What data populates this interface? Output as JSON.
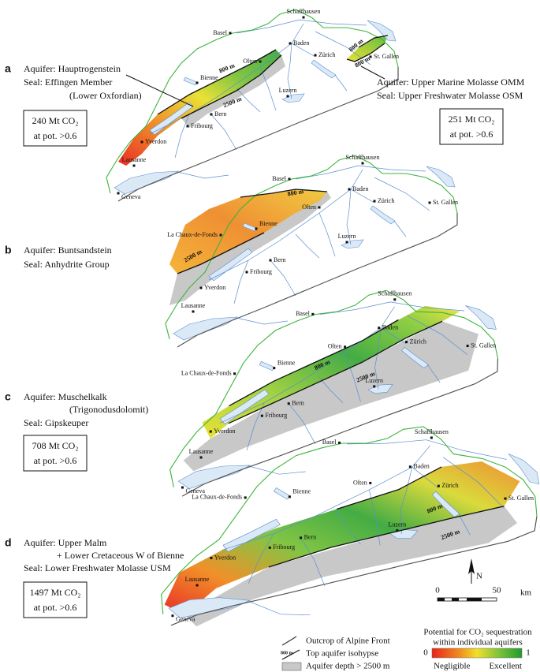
{
  "panels": [
    {
      "letter": "a",
      "aquifer": "Aquifer: Hauptrogenstein",
      "seal": "Seal: Effingen Member",
      "seal_note": "(Lower Oxfordian)",
      "capacity": "240 Mt CO₂",
      "capacity_note": "at pot. >0.6",
      "aquifer_2": "Aquifer: Upper Marine Molasse OMM",
      "seal_2": "Seal: Upper Freshwater Molasse OSM",
      "capacity_2": "251 Mt CO₂",
      "capacity_note_2": "at pot. >0.6",
      "cities": [
        "Schaffhausen",
        "Basel",
        "Baden",
        "Zürich",
        "Olten",
        "St. Gallen",
        "Bienne",
        "Luzern",
        "Bern",
        "Fribourg",
        "Yverdon",
        "Lausanne",
        "Geneva"
      ],
      "isohypses": [
        "800 m",
        "2500 m",
        "800 m",
        "800 m"
      ]
    },
    {
      "letter": "b",
      "aquifer": "Aquifer: Buntsandstein",
      "seal": "Seal: Anhydrite Group",
      "cities": [
        "Schaffhausen",
        "Basel",
        "Baden",
        "Zürich",
        "Olten",
        "St. Gallen",
        "La Chaux-de-Fonds",
        "Bienne",
        "Luzern",
        "Bern",
        "Fribourg",
        "Yverdon",
        "Lausanne"
      ],
      "isohypses": [
        "800 m",
        "2500 m"
      ]
    },
    {
      "letter": "c",
      "aquifer": "Aquifer: Muschelkalk",
      "aquifer_note": "(Trigonodusdolomit)",
      "seal": "Seal: Gipskeuper",
      "capacity": "708 Mt CO₂",
      "capacity_note": "at pot. >0.6",
      "cities": [
        "Schaffhausen",
        "Basel",
        "Baden",
        "Zürich",
        "Olten",
        "St. Gallen",
        "La Chaux-de-Fonds",
        "Bienne",
        "Luzern",
        "Bern",
        "Fribourg",
        "Yverdon",
        "Lausanne",
        "Geneva"
      ],
      "isohypses": [
        "800 m",
        "2500 m"
      ]
    },
    {
      "letter": "d",
      "aquifer": "Aquifer: Upper Malm",
      "aquifer_note": "+ Lower Cretaceous W of Bienne",
      "seal": "Seal: Lower Freshwater Molasse USM",
      "capacity": "1497 Mt CO₂",
      "capacity_note": "at pot. >0.6",
      "cities": [
        "Schaffhausen",
        "Basel",
        "Baden",
        "Zürich",
        "Olten",
        "St. Gallen",
        "La Chaux-de-Fonds",
        "Bienne",
        "Luzern",
        "Bern",
        "Fribourg",
        "Yverdon",
        "Lausanne",
        "Geneva"
      ],
      "isohypses": [
        "800 m",
        "2500 m"
      ]
    }
  ],
  "legend": {
    "outcrop": "Outcrop of Alpine Front",
    "isohypse": "Top aquifer isohypse",
    "isohypse_sample": "800 m",
    "depth": "Aquifer depth > 2500 m",
    "potential_title": "Potential for CO₂ sequestration",
    "potential_subtitle": "within individual aquifers",
    "min": "0",
    "max": "1",
    "min_label": "Negligible",
    "max_label": "Excellent"
  },
  "scale_bar": {
    "north": "N",
    "start": "0",
    "end": "50",
    "unit": "km"
  }
}
